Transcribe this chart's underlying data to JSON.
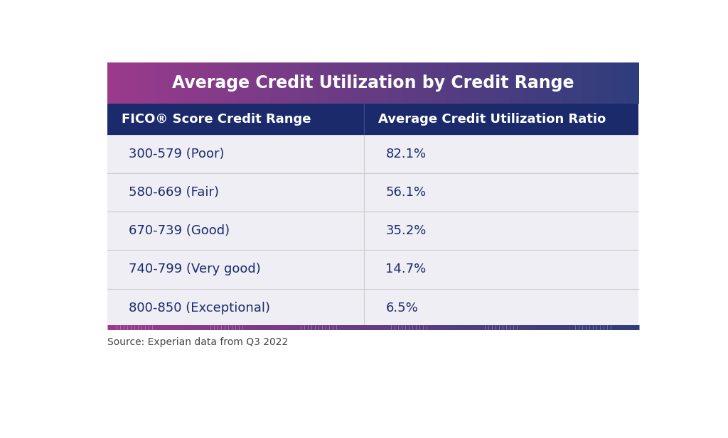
{
  "title": "Average Credit Utilization by Credit Range",
  "col1_header": "FICO® Score Credit Range",
  "col2_header": "Average Credit Utilization Ratio",
  "rows": [
    [
      "300-579 (Poor)",
      "82.1%"
    ],
    [
      "580-669 (Fair)",
      "56.1%"
    ],
    [
      "670-739 (Good)",
      "35.2%"
    ],
    [
      "740-799 (Very good)",
      "14.7%"
    ],
    [
      "800-850 (Exceptional)",
      "6.5%"
    ]
  ],
  "source_text": "Source: Experian data from Q3 2022",
  "title_bg_color_left": "#9B3A8C",
  "title_bg_color_right": "#2E3D7C",
  "header_bg_color": "#1B2A6B",
  "header_text_color": "#FFFFFF",
  "row_bg_color": "#EEEEF4",
  "row_text_color": "#1B2A6B",
  "divider_color": "#CCCCCC",
  "source_text_color": "#444444",
  "title_font_size": 17,
  "header_font_size": 13,
  "row_font_size": 13,
  "source_font_size": 10,
  "col_split": 0.455
}
